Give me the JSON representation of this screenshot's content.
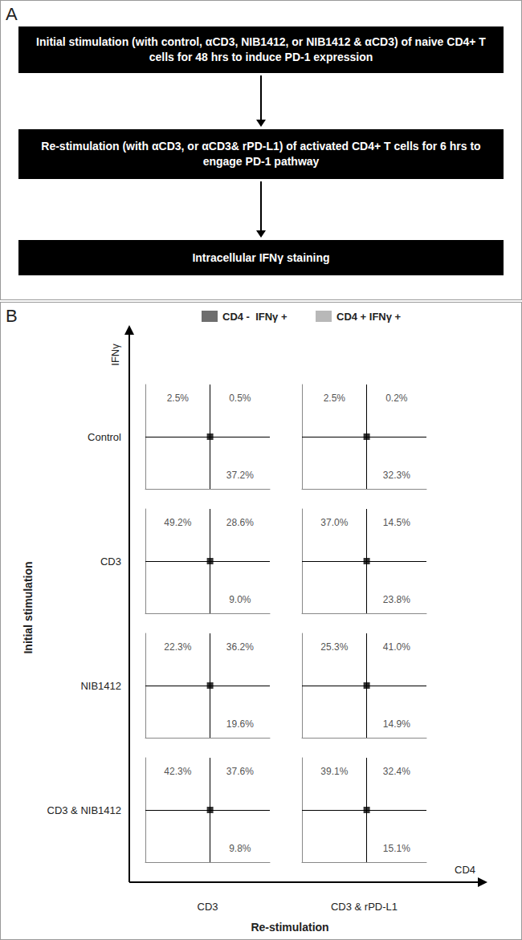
{
  "panel_labels": [
    "A",
    "B"
  ],
  "flowchart": {
    "steps": [
      "Initial stimulation (with control, αCD3, NIB1412, or NIB1412 & αCD3) of naive CD4+ T  cells for 48 hrs to induce PD-1 expression",
      "Re-stimulation (with αCD3, or αCD3& rPD-L1) of activated CD4+ T cells for 6 hrs to engage PD-1 pathway",
      "Intracellular IFNγ staining"
    ]
  },
  "figure": {
    "legend": [
      {
        "name": "CD4 -  IFNγ +",
        "color": "#6e6e6e"
      },
      {
        "name": "CD4 + IFNγ +",
        "color": "#b8b8b8"
      }
    ],
    "y_axis_label": "IFNγ",
    "x_axis_label": "CD4",
    "row_title": "Initial stimulation",
    "column_title": "Re-stimulation",
    "rows": [
      "Control",
      "CD3",
      "NIB1412",
      "CD3 & NIB1412"
    ],
    "columns": [
      "CD3",
      "CD3 & rPD-L1"
    ]
  },
  "chart_data": [
    {
      "type": "scatter",
      "xlim": [
        0,
        100
      ],
      "ylim": [
        0,
        100
      ],
      "tick_labels": false,
      "gate": {
        "x": 52,
        "y": 50
      },
      "quadrants": {
        "upper_left": {
          "value": 2.5,
          "label": "2.5%"
        },
        "upper_right": {
          "value": 0.5,
          "label": "0.5%"
        },
        "lower_right": {
          "value": 37.2,
          "label": "37.2%"
        }
      }
    },
    {
      "type": "scatter",
      "xlim": [
        0,
        100
      ],
      "ylim": [
        0,
        100
      ],
      "tick_labels": false,
      "gate": {
        "x": 52,
        "y": 50
      },
      "quadrants": {
        "upper_left": {
          "value": 2.5,
          "label": "2.5%"
        },
        "upper_right": {
          "value": 0.2,
          "label": "0.2%"
        },
        "lower_right": {
          "value": 32.3,
          "label": "32.3%"
        }
      }
    },
    {
      "type": "scatter",
      "xlim": [
        0,
        100
      ],
      "ylim": [
        0,
        100
      ],
      "tick_labels": false,
      "gate": {
        "x": 52,
        "y": 50
      },
      "quadrants": {
        "upper_left": {
          "value": 49.2,
          "label": "49.2%"
        },
        "upper_right": {
          "value": 28.6,
          "label": "28.6%"
        },
        "lower_right": {
          "value": 9.0,
          "label": "9.0%"
        }
      }
    },
    {
      "type": "scatter",
      "xlim": [
        0,
        100
      ],
      "ylim": [
        0,
        100
      ],
      "tick_labels": false,
      "gate": {
        "x": 52,
        "y": 50
      },
      "quadrants": {
        "upper_left": {
          "value": 37.0,
          "label": "37.0%"
        },
        "upper_right": {
          "value": 14.5,
          "label": "14.5%"
        },
        "lower_right": {
          "value": 23.8,
          "label": "23.8%"
        }
      }
    },
    {
      "type": "scatter",
      "xlim": [
        0,
        100
      ],
      "ylim": [
        0,
        100
      ],
      "tick_labels": false,
      "gate": {
        "x": 52,
        "y": 50
      },
      "quadrants": {
        "upper_left": {
          "value": 22.3,
          "label": "22.3%"
        },
        "upper_right": {
          "value": 36.2,
          "label": "36.2%"
        },
        "lower_right": {
          "value": 19.6,
          "label": "19.6%"
        }
      }
    },
    {
      "type": "scatter",
      "xlim": [
        0,
        100
      ],
      "ylim": [
        0,
        100
      ],
      "tick_labels": false,
      "gate": {
        "x": 52,
        "y": 50
      },
      "quadrants": {
        "upper_left": {
          "value": 25.3,
          "label": "25.3%"
        },
        "upper_right": {
          "value": 41.0,
          "label": "41.0%"
        },
        "lower_right": {
          "value": 14.9,
          "label": "14.9%"
        }
      }
    },
    {
      "type": "scatter",
      "xlim": [
        0,
        100
      ],
      "ylim": [
        0,
        100
      ],
      "tick_labels": false,
      "gate": {
        "x": 52,
        "y": 50
      },
      "quadrants": {
        "upper_left": {
          "value": 42.3,
          "label": "42.3%"
        },
        "upper_right": {
          "value": 37.6,
          "label": "37.6%"
        },
        "lower_right": {
          "value": 9.8,
          "label": "9.8%"
        }
      }
    },
    {
      "type": "scatter",
      "xlim": [
        0,
        100
      ],
      "ylim": [
        0,
        100
      ],
      "tick_labels": false,
      "gate": {
        "x": 52,
        "y": 50
      },
      "quadrants": {
        "upper_left": {
          "value": 39.1,
          "label": "39.1%"
        },
        "upper_right": {
          "value": 32.4,
          "label": "32.4%"
        },
        "lower_right": {
          "value": 15.1,
          "label": "15.1%"
        }
      }
    }
  ]
}
